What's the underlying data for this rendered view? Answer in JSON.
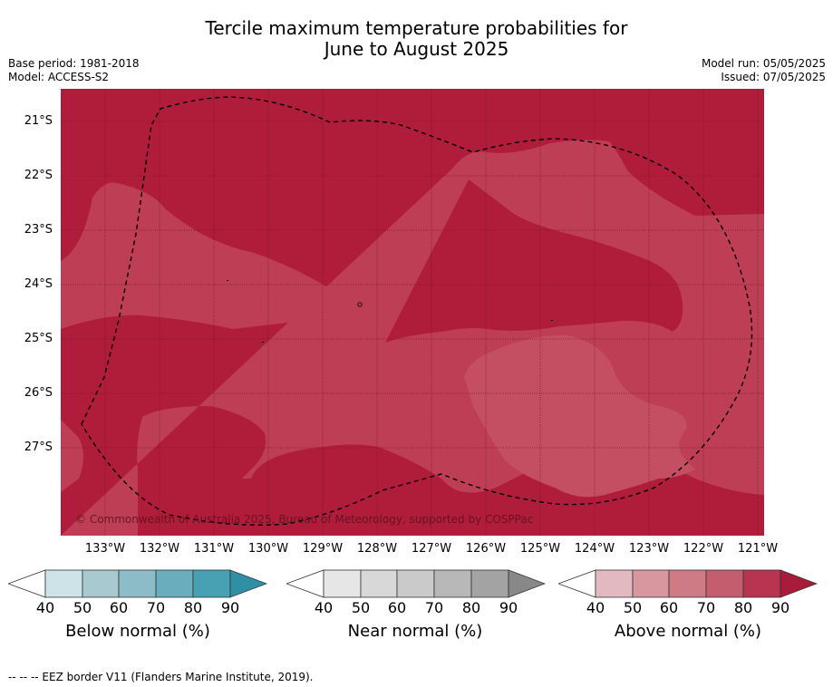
{
  "title_line1": "Tercile maximum temperature probabilities for",
  "title_line2": "June to August 2025",
  "meta_left": [
    "Base period: 1981-2018",
    "Model: ACCESS-S2"
  ],
  "meta_right": [
    "Model run: 05/05/2025",
    "Issued: 07/05/2025"
  ],
  "map": {
    "lat_labels": [
      "21°S",
      "22°S",
      "23°S",
      "24°S",
      "25°S",
      "26°S",
      "27°S"
    ],
    "lon_labels": [
      "133°W",
      "132°W",
      "131°W",
      "130°W",
      "129°W",
      "128°W",
      "127°W",
      "126°W",
      "125°W",
      "124°W",
      "123°W",
      "122°W",
      "121°W"
    ],
    "copyright": "© Commonwealth of Australia 2025, Bureau of Meteorology, supported by COSPPac",
    "colors": {
      "above_80_90": "#b01d3b",
      "above_70_80": "#bd3e55",
      "above_60_70": "#c44e62"
    }
  },
  "colorbars": [
    {
      "label": "Below normal (%)",
      "ticks": [
        "40",
        "50",
        "60",
        "70",
        "80",
        "90"
      ],
      "colors": [
        "#cde3e8",
        "#a9c9d0",
        "#8bbcc8",
        "#6aaebd",
        "#47a1b3",
        "#2f8fa3"
      ]
    },
    {
      "label": "Near normal (%)",
      "ticks": [
        "40",
        "50",
        "60",
        "70",
        "80",
        "90"
      ],
      "colors": [
        "#e6e6e6",
        "#d8d8d8",
        "#cacaca",
        "#b8b8b8",
        "#a3a3a3",
        "#888888"
      ]
    },
    {
      "label": "Above normal (%)",
      "ticks": [
        "40",
        "50",
        "60",
        "70",
        "80",
        "90"
      ],
      "colors": [
        "#e3b9c0",
        "#d8979f",
        "#cf7b86",
        "#c45e6e",
        "#b83450",
        "#a81b3a"
      ]
    }
  ],
  "footer": "--  --  -- EEZ border V11 (Flanders Marine Institute, 2019)."
}
